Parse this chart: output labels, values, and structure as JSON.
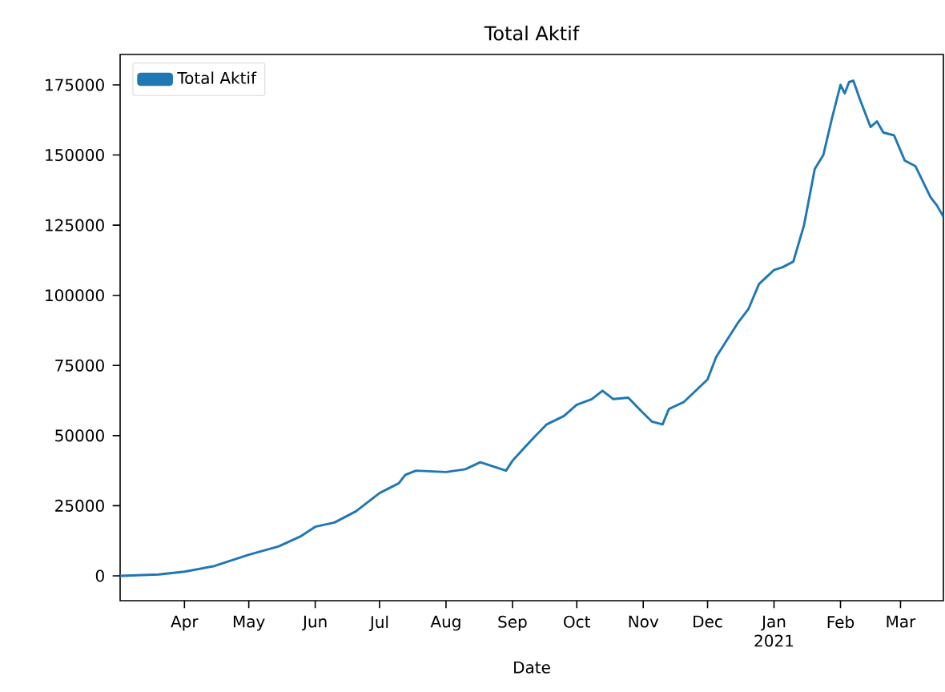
{
  "chart_data": {
    "type": "line",
    "title": "Total Aktif",
    "xlabel": "Date",
    "x": [
      "2020-03-02",
      "2020-03-20",
      "2020-04-01",
      "2020-04-15",
      "2020-05-01",
      "2020-05-15",
      "2020-05-25",
      "2020-06-01",
      "2020-06-10",
      "2020-06-20",
      "2020-07-01",
      "2020-07-10",
      "2020-07-13",
      "2020-07-18",
      "2020-08-01",
      "2020-08-10",
      "2020-08-17",
      "2020-08-25",
      "2020-08-29",
      "2020-09-01",
      "2020-09-10",
      "2020-09-17",
      "2020-09-25",
      "2020-10-01",
      "2020-10-08",
      "2020-10-13",
      "2020-10-18",
      "2020-10-25",
      "2020-11-01",
      "2020-11-05",
      "2020-11-10",
      "2020-11-13",
      "2020-11-20",
      "2020-12-01",
      "2020-12-05",
      "2020-12-15",
      "2020-12-20",
      "2020-12-25",
      "2021-01-01",
      "2021-01-05",
      "2021-01-10",
      "2021-01-15",
      "2021-01-20",
      "2021-01-24",
      "2021-01-28",
      "2021-02-01",
      "2021-02-03",
      "2021-02-05",
      "2021-02-07",
      "2021-02-10",
      "2021-02-15",
      "2021-02-18",
      "2021-02-21",
      "2021-02-26",
      "2021-03-03",
      "2021-03-08",
      "2021-03-15",
      "2021-03-18",
      "2021-03-21"
    ],
    "series": [
      {
        "name": "Total Aktif",
        "color": "#1f77b4",
        "values": [
          0,
          500,
          1500,
          3500,
          7500,
          10500,
          14000,
          17500,
          19000,
          23000,
          29500,
          33000,
          36000,
          37500,
          37000,
          38000,
          40500,
          38500,
          37500,
          41000,
          48500,
          54000,
          57000,
          61000,
          63000,
          66000,
          63000,
          63500,
          58000,
          55000,
          54000,
          59500,
          62000,
          70000,
          78000,
          90000,
          95000,
          104000,
          109000,
          110000,
          112000,
          125000,
          145000,
          150000,
          163000,
          175000,
          172000,
          176000,
          176500,
          170000,
          160000,
          162000,
          158000,
          157000,
          148000,
          146000,
          135000,
          132000,
          128000
        ]
      }
    ],
    "xlim": [
      "2020-03-02",
      "2021-03-21"
    ],
    "xticks": [
      {
        "value": "2020-04-01",
        "label": "Apr"
      },
      {
        "value": "2020-05-01",
        "label": "May"
      },
      {
        "value": "2020-06-01",
        "label": "Jun"
      },
      {
        "value": "2020-07-01",
        "label": "Jul"
      },
      {
        "value": "2020-08-01",
        "label": "Aug"
      },
      {
        "value": "2020-09-01",
        "label": "Sep"
      },
      {
        "value": "2020-10-01",
        "label": "Oct"
      },
      {
        "value": "2020-11-01",
        "label": "Nov"
      },
      {
        "value": "2020-12-01",
        "label": "Dec"
      },
      {
        "value": "2021-01-01",
        "label": "Jan 2021"
      },
      {
        "value": "2021-02-01",
        "label": "Feb"
      },
      {
        "value": "2021-03-01",
        "label": "Mar"
      }
    ],
    "ylim": [
      -8850,
      185850
    ],
    "yticks": [
      0,
      25000,
      50000,
      75000,
      100000,
      125000,
      150000,
      175000
    ],
    "legend": "top left",
    "grid": false,
    "marker": "none",
    "line_style": "solid"
  }
}
